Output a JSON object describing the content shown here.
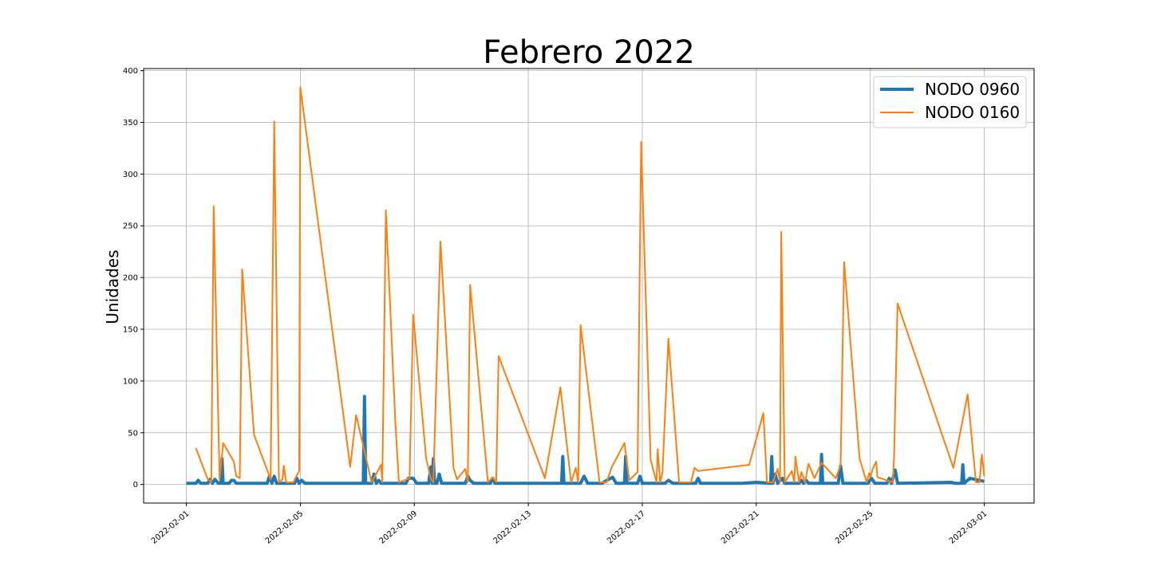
{
  "chart_data": {
    "type": "line",
    "title": "Febrero 2022",
    "xlabel": "",
    "ylabel": "Unidades",
    "xlim": [
      "2022-01-30T12:00",
      "2022-03-02T18:00"
    ],
    "ylim": [
      -18,
      402
    ],
    "x_ticks": [
      "2022-02-01",
      "2022-02-05",
      "2022-02-09",
      "2022-02-13",
      "2022-02-17",
      "2022-02-21",
      "2022-02-25",
      "2022-03-01"
    ],
    "y_ticks": [
      0,
      50,
      100,
      150,
      200,
      250,
      300,
      350,
      400
    ],
    "grid": true,
    "legend_position": "top-right",
    "colors": {
      "NODO 0960": "#1f77b4",
      "NODO 0160": "#ff7f0e"
    },
    "series": [
      {
        "name": "NODO 0960",
        "color": "#1f77b4",
        "points": [
          [
            "2022-02-01T00:00",
            1
          ],
          [
            "2022-02-01T08:00",
            1
          ],
          [
            "2022-02-01T10:00",
            4
          ],
          [
            "2022-02-01T12:00",
            1
          ],
          [
            "2022-02-01T18:00",
            1
          ],
          [
            "2022-02-01T20:00",
            5
          ],
          [
            "2022-02-01T22:00",
            1
          ],
          [
            "2022-02-02T00:00",
            5
          ],
          [
            "2022-02-02T03:00",
            1
          ],
          [
            "2022-02-02T05:00",
            1
          ],
          [
            "2022-02-02T06:00",
            25
          ],
          [
            "2022-02-02T07:00",
            1
          ],
          [
            "2022-02-02T12:00",
            1
          ],
          [
            "2022-02-02T14:00",
            4
          ],
          [
            "2022-02-02T16:00",
            4
          ],
          [
            "2022-02-02T18:00",
            1
          ],
          [
            "2022-02-03T12:00",
            1
          ],
          [
            "2022-02-03T20:00",
            1
          ],
          [
            "2022-02-03T22:00",
            8
          ],
          [
            "2022-02-04T00:00",
            1
          ],
          [
            "2022-02-04T02:00",
            8
          ],
          [
            "2022-02-04T04:00",
            1
          ],
          [
            "2022-02-04T19:00",
            1
          ],
          [
            "2022-02-04T21:00",
            6
          ],
          [
            "2022-02-04T23:00",
            1
          ],
          [
            "2022-02-05T01:00",
            4
          ],
          [
            "2022-02-05T04:00",
            1
          ],
          [
            "2022-02-07T05:00",
            1
          ],
          [
            "2022-02-07T06:00",
            85
          ],
          [
            "2022-02-07T07:00",
            1
          ],
          [
            "2022-02-07T12:00",
            1
          ],
          [
            "2022-02-07T14:00",
            10
          ],
          [
            "2022-02-07T16:00",
            1
          ],
          [
            "2022-02-07T18:00",
            4
          ],
          [
            "2022-02-07T20:00",
            1
          ],
          [
            "2022-02-08T17:00",
            1
          ],
          [
            "2022-02-08T19:00",
            6
          ],
          [
            "2022-02-08T23:00",
            6
          ],
          [
            "2022-02-09T02:00",
            1
          ],
          [
            "2022-02-09T12:00",
            1
          ],
          [
            "2022-02-09T14:00",
            17
          ],
          [
            "2022-02-09T15:00",
            1
          ],
          [
            "2022-02-09T16:00",
            25
          ],
          [
            "2022-02-09T17:00",
            1
          ],
          [
            "2022-02-09T19:00",
            1
          ],
          [
            "2022-02-09T21:00",
            10
          ],
          [
            "2022-02-09T23:00",
            1
          ],
          [
            "2022-02-10T12:00",
            1
          ],
          [
            "2022-02-10T19:00",
            1
          ],
          [
            "2022-02-10T21:00",
            8
          ],
          [
            "2022-02-10T23:00",
            4
          ],
          [
            "2022-02-11T02:00",
            1
          ],
          [
            "2022-02-11T16:00",
            1
          ],
          [
            "2022-02-11T18:00",
            6
          ],
          [
            "2022-02-11T20:00",
            1
          ],
          [
            "2022-02-12T00:00",
            1
          ],
          [
            "2022-02-14T04:00",
            1
          ],
          [
            "2022-02-14T05:00",
            27
          ],
          [
            "2022-02-14T06:00",
            1
          ],
          [
            "2022-02-14T20:00",
            1
          ],
          [
            "2022-02-14T23:00",
            8
          ],
          [
            "2022-02-15T02:00",
            1
          ],
          [
            "2022-02-15T14:00",
            1
          ],
          [
            "2022-02-15T18:00",
            4
          ],
          [
            "2022-02-15T23:00",
            7
          ],
          [
            "2022-02-16T02:00",
            1
          ],
          [
            "2022-02-16T09:00",
            1
          ],
          [
            "2022-02-16T10:00",
            27
          ],
          [
            "2022-02-16T11:00",
            1
          ],
          [
            "2022-02-16T20:00",
            1
          ],
          [
            "2022-02-16T22:00",
            8
          ],
          [
            "2022-02-17T00:00",
            1
          ],
          [
            "2022-02-17T19:00",
            1
          ],
          [
            "2022-02-17T22:00",
            4
          ],
          [
            "2022-02-18T02:00",
            1
          ],
          [
            "2022-02-18T21:00",
            1
          ],
          [
            "2022-02-18T23:00",
            6
          ],
          [
            "2022-02-19T01:00",
            1
          ],
          [
            "2022-02-20T12:00",
            1
          ],
          [
            "2022-02-21T00:00",
            2
          ],
          [
            "2022-02-21T12:00",
            1
          ],
          [
            "2022-02-21T13:00",
            27
          ],
          [
            "2022-02-21T14:00",
            1
          ],
          [
            "2022-02-21T16:00",
            10
          ],
          [
            "2022-02-21T18:00",
            1
          ],
          [
            "2022-02-21T22:00",
            6
          ],
          [
            "2022-02-22T00:00",
            1
          ],
          [
            "2022-02-22T12:00",
            1
          ],
          [
            "2022-02-22T14:00",
            4
          ],
          [
            "2022-02-22T16:00",
            1
          ],
          [
            "2022-02-22T18:00",
            4
          ],
          [
            "2022-02-22T20:00",
            1
          ],
          [
            "2022-02-23T06:00",
            1
          ],
          [
            "2022-02-23T07:00",
            29
          ],
          [
            "2022-02-23T08:00",
            1
          ],
          [
            "2022-02-23T21:00",
            1
          ],
          [
            "2022-02-23T23:00",
            18
          ],
          [
            "2022-02-24T01:00",
            1
          ],
          [
            "2022-02-24T22:00",
            1
          ],
          [
            "2022-02-25T01:00",
            6
          ],
          [
            "2022-02-25T04:00",
            1
          ],
          [
            "2022-02-25T14:00",
            1
          ],
          [
            "2022-02-25T16:00",
            6
          ],
          [
            "2022-02-25T18:00",
            1
          ],
          [
            "2022-02-25T21:00",
            14
          ],
          [
            "2022-02-25T23:00",
            1
          ],
          [
            "2022-02-27T20:00",
            2
          ],
          [
            "2022-02-28T00:00",
            1
          ],
          [
            "2022-02-28T05:00",
            1
          ],
          [
            "2022-02-28T06:00",
            19
          ],
          [
            "2022-02-28T07:00",
            1
          ],
          [
            "2022-02-28T12:00",
            6
          ],
          [
            "2022-03-01T00:00",
            3
          ]
        ]
      },
      {
        "name": "NODO 0160",
        "color": "#ff7f0e",
        "points": [
          [
            "2022-02-01T08:00",
            35
          ],
          [
            "2022-02-01T18:00",
            5
          ],
          [
            "2022-02-01T21:00",
            2
          ],
          [
            "2022-02-01T23:00",
            269
          ],
          [
            "2022-02-02T04:00",
            5
          ],
          [
            "2022-02-02T07:00",
            40
          ],
          [
            "2022-02-02T16:00",
            22
          ],
          [
            "2022-02-02T18:00",
            8
          ],
          [
            "2022-02-02T21:00",
            6
          ],
          [
            "2022-02-02T23:00",
            208
          ],
          [
            "2022-02-03T09:00",
            48
          ],
          [
            "2022-02-03T23:00",
            5
          ],
          [
            "2022-02-04T02:00",
            351
          ],
          [
            "2022-02-04T06:00",
            2
          ],
          [
            "2022-02-04T09:00",
            5
          ],
          [
            "2022-02-04T10:00",
            18
          ],
          [
            "2022-02-04T12:00",
            2
          ],
          [
            "2022-02-04T18:00",
            2
          ],
          [
            "2022-02-04T23:00",
            13
          ],
          [
            "2022-02-05T00:00",
            384
          ],
          [
            "2022-02-06T18:00",
            17
          ],
          [
            "2022-02-06T23:00",
            67
          ],
          [
            "2022-02-07T12:00",
            2
          ],
          [
            "2022-02-07T20:00",
            19
          ],
          [
            "2022-02-07T21:00",
            2
          ],
          [
            "2022-02-08T00:00",
            265
          ],
          [
            "2022-02-08T08:00",
            60
          ],
          [
            "2022-02-08T11:00",
            2
          ],
          [
            "2022-02-08T20:00",
            6
          ],
          [
            "2022-02-08T23:00",
            164
          ],
          [
            "2022-02-09T10:00",
            25
          ],
          [
            "2022-02-09T14:00",
            5
          ],
          [
            "2022-02-09T16:00",
            2
          ],
          [
            "2022-02-09T22:00",
            235
          ],
          [
            "2022-02-10T09:00",
            16
          ],
          [
            "2022-02-10T12:00",
            5
          ],
          [
            "2022-02-10T19:00",
            15
          ],
          [
            "2022-02-10T21:00",
            2
          ],
          [
            "2022-02-10T23:00",
            193
          ],
          [
            "2022-02-11T14:00",
            2
          ],
          [
            "2022-02-11T18:00",
            7
          ],
          [
            "2022-02-11T21:00",
            2
          ],
          [
            "2022-02-11T23:00",
            124
          ],
          [
            "2022-02-13T14:00",
            6
          ],
          [
            "2022-02-14T03:00",
            94
          ],
          [
            "2022-02-14T12:00",
            2
          ],
          [
            "2022-02-14T16:00",
            16
          ],
          [
            "2022-02-14T18:00",
            2
          ],
          [
            "2022-02-14T20:00",
            154
          ],
          [
            "2022-02-15T12:00",
            2
          ],
          [
            "2022-02-15T18:00",
            2
          ],
          [
            "2022-02-15T22:00",
            16
          ],
          [
            "2022-02-16T09:00",
            40
          ],
          [
            "2022-02-16T13:00",
            4
          ],
          [
            "2022-02-16T20:00",
            12
          ],
          [
            "2022-02-16T23:00",
            331
          ],
          [
            "2022-02-17T07:00",
            24
          ],
          [
            "2022-02-17T12:00",
            2
          ],
          [
            "2022-02-17T13:00",
            34
          ],
          [
            "2022-02-17T15:00",
            2
          ],
          [
            "2022-02-17T17:00",
            12
          ],
          [
            "2022-02-17T22:00",
            141
          ],
          [
            "2022-02-18T07:00",
            2
          ],
          [
            "2022-02-18T17:00",
            2
          ],
          [
            "2022-02-18T20:00",
            16
          ],
          [
            "2022-02-18T23:00",
            13
          ],
          [
            "2022-02-20T18:00",
            19
          ],
          [
            "2022-02-21T06:00",
            69
          ],
          [
            "2022-02-21T09:00",
            2
          ],
          [
            "2022-02-21T14:00",
            2
          ],
          [
            "2022-02-21T18:00",
            15
          ],
          [
            "2022-02-21T20:00",
            2
          ],
          [
            "2022-02-21T21:00",
            244
          ],
          [
            "2022-02-22T00:00",
            2
          ],
          [
            "2022-02-22T06:00",
            13
          ],
          [
            "2022-02-22T08:00",
            2
          ],
          [
            "2022-02-22T09:00",
            27
          ],
          [
            "2022-02-22T12:00",
            2
          ],
          [
            "2022-02-22T14:00",
            12
          ],
          [
            "2022-02-22T17:00",
            2
          ],
          [
            "2022-02-22T20:00",
            20
          ],
          [
            "2022-02-23T01:00",
            6
          ],
          [
            "2022-02-23T07:00",
            21
          ],
          [
            "2022-02-23T19:00",
            6
          ],
          [
            "2022-02-23T23:00",
            19
          ],
          [
            "2022-02-24T02:00",
            215
          ],
          [
            "2022-02-24T15:00",
            25
          ],
          [
            "2022-02-24T21:00",
            2
          ],
          [
            "2022-02-24T23:00",
            11
          ],
          [
            "2022-02-25T00:00",
            7
          ],
          [
            "2022-02-25T02:00",
            15
          ],
          [
            "2022-02-25T05:00",
            22
          ],
          [
            "2022-02-25T06:00",
            7
          ],
          [
            "2022-02-25T19:00",
            2
          ],
          [
            "2022-02-25T20:00",
            25
          ],
          [
            "2022-02-25T23:00",
            175
          ],
          [
            "2022-02-27T22:00",
            16
          ],
          [
            "2022-02-28T10:00",
            87
          ],
          [
            "2022-02-28T17:00",
            2
          ],
          [
            "2022-02-28T20:00",
            2
          ],
          [
            "2022-02-28T22:00",
            29
          ],
          [
            "2022-03-01T00:00",
            8
          ]
        ]
      }
    ]
  }
}
